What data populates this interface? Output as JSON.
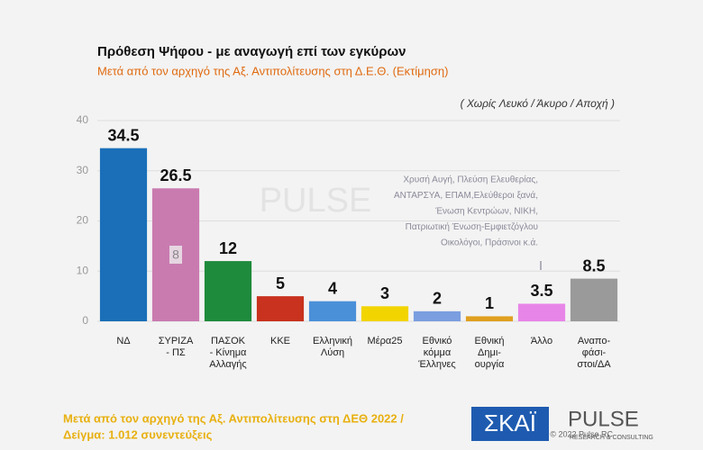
{
  "chart_data": {
    "type": "bar",
    "title": "Πρόθεση Ψήφου - με αναγωγή επί των εγκύρων",
    "subtitle": "Μετά από τον αρχηγό της Αξ. Αντιπολίτευσης στη Δ.Ε.Θ.  (Εκτίμηση)",
    "note": "( Χωρίς Λευκό / Άκυρο / Αποχή )",
    "categories": [
      "ΝΔ",
      "ΣΥΡΙΖΑ\n- ΠΣ",
      "ΠΑΣΟΚ\n- Κίνημα\nΑλλαγής",
      "ΚΚΕ",
      "Ελληνική\nΛύση",
      "Μέρα25",
      "Εθνικό\nκόμμα\nΈλληνες",
      "Εθνική\nΔημι-\nουργία",
      "Άλλο",
      "Αναπο-\nφάσι-\nστοι/ΔΑ"
    ],
    "values": [
      34.5,
      26.5,
      12,
      5,
      4,
      3,
      2,
      1,
      3.5,
      8.5
    ],
    "colors": [
      "#1a6fb8",
      "#c97bb0",
      "#1e8a3c",
      "#c8321e",
      "#4a90d9",
      "#f2d400",
      "#7a9ee0",
      "#e0a020",
      "#e885e8",
      "#9a9a9a"
    ],
    "ylim": [
      0,
      40
    ],
    "yticks": [
      0,
      10,
      20,
      30,
      40
    ],
    "grid": true,
    "inner_annotation": "8",
    "other_annotation": [
      "Χρυσή Αυγή, Πλεύση Ελευθερίας,",
      "ΑΝΤΑΡΣΥΑ, ΕΠΑΜ,Ελεύθεροι ξανά,",
      "Ένωση Κεντρώων,  ΝΙΚΗ,",
      "Πατριωτική Ένωση-Εμφιετζόγλου",
      "Οικολόγοι, Πράσινοι   κ.ά."
    ],
    "copyright": "© 2022 Pulse RC",
    "footer": [
      "Μετά από τον αρχηγό της Αξ. Αντιπολίτευσης στη ΔΕΘ  2022  /",
      "Δείγμα:  1.012 συνεντεύξεις"
    ],
    "logos": {
      "skai": "ΣΚΑΪ",
      "pulse": "PULSE",
      "pulse_sub": "RESEARCH & CONSULTING"
    }
  }
}
